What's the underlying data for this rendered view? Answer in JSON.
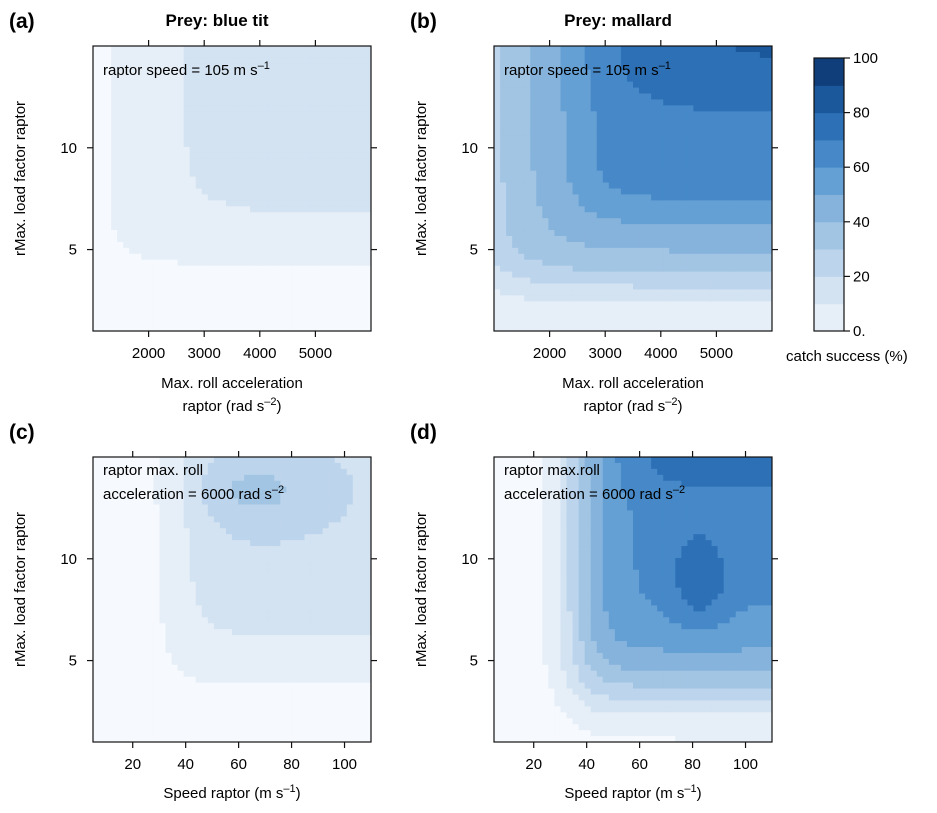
{
  "figure": {
    "colorbar": {
      "label": "catch success (%)",
      "ticks": [
        "100",
        "80",
        "60",
        "40",
        "20",
        "0."
      ],
      "levels": [
        0,
        10,
        20,
        30,
        40,
        50,
        60,
        70,
        80,
        90,
        100
      ],
      "colors": [
        "#f6f9fd",
        "#e6eff8",
        "#d3e3f2",
        "#bdd5ec",
        "#a3c5e4",
        "#86b3dc",
        "#65a0d4",
        "#4789c8",
        "#2d70b6",
        "#1a579b",
        "#0f3e7a"
      ]
    }
  },
  "chart_data": [
    {
      "type": "heatmap",
      "panel_label": "(a)",
      "title": "Prey: blue tit",
      "annotation": [
        "raptor speed = 105 m s",
        "–1"
      ],
      "xlabel": [
        "Max. roll acceleration",
        "raptor (rad s",
        "–2",
        ")"
      ],
      "ylabel": "rMax. load factor raptor",
      "xlim": [
        1000,
        6000
      ],
      "ylim": [
        1,
        15
      ],
      "xticks": [
        2000,
        3000,
        4000,
        5000
      ],
      "xticklabels": [
        "2000",
        "3000",
        "4000",
        "5000"
      ],
      "yticks": [
        5,
        10
      ],
      "yticklabels": [
        "5",
        "10"
      ],
      "z_range": [
        0,
        100
      ],
      "peak_catch_success_pct": 25
    },
    {
      "type": "heatmap",
      "panel_label": "(b)",
      "title": "Prey: mallard",
      "annotation": [
        "raptor speed = 105 m s",
        "–1"
      ],
      "xlabel": [
        "Max. roll acceleration",
        "raptor (rad s",
        "–2",
        ")"
      ],
      "ylabel": "rMax. load factor raptor",
      "xlim": [
        1000,
        6000
      ],
      "ylim": [
        1,
        15
      ],
      "xticks": [
        2000,
        3000,
        4000,
        5000
      ],
      "xticklabels": [
        "2000",
        "3000",
        "4000",
        "5000"
      ],
      "yticks": [
        5,
        10
      ],
      "yticklabels": [
        "5",
        "10"
      ],
      "z_range": [
        0,
        100
      ],
      "peak_catch_success_pct": 92
    },
    {
      "type": "heatmap",
      "panel_label": "(c)",
      "title": "",
      "annotation": [
        "raptor max. roll",
        "acceleration = 6000 rad s",
        "–2"
      ],
      "xlabel": [
        "Speed raptor (m s",
        "–1",
        ")"
      ],
      "ylabel": "rMax. load factor raptor",
      "xlim": [
        5,
        110
      ],
      "ylim": [
        1,
        15
      ],
      "xticks": [
        20,
        40,
        60,
        80,
        100
      ],
      "xticklabels": [
        "20",
        "40",
        "60",
        "80",
        "100"
      ],
      "yticks": [
        5,
        10
      ],
      "yticklabels": [
        "5",
        "10"
      ],
      "z_range": [
        0,
        100
      ],
      "peak_catch_success_pct": 38
    },
    {
      "type": "heatmap",
      "panel_label": "(d)",
      "title": "",
      "annotation": [
        "raptor max.roll",
        "acceleration = 6000 rad s",
        "–2"
      ],
      "xlabel": [
        "Speed raptor (m s",
        "–1",
        ")"
      ],
      "ylabel": "rMax. load factor raptor",
      "xlim": [
        5,
        110
      ],
      "ylim": [
        1,
        15
      ],
      "xticks": [
        20,
        40,
        60,
        80,
        100
      ],
      "xticklabels": [
        "20",
        "40",
        "60",
        "80",
        "100"
      ],
      "yticks": [
        5,
        10
      ],
      "yticklabels": [
        "5",
        "10"
      ],
      "z_range": [
        0,
        100
      ],
      "peak_catch_success_pct": 88
    }
  ]
}
